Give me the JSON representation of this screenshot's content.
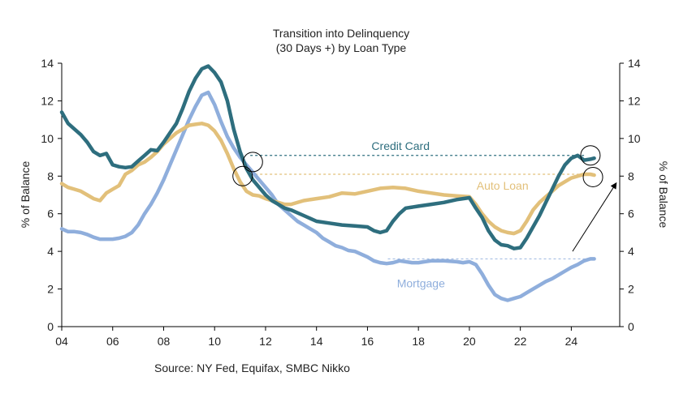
{
  "chart_data": {
    "type": "line",
    "title": "Transition into Delinquency",
    "subtitle": "(30 Days +) by Loan Type",
    "ylabel_left": "% of Balance",
    "ylabel_right": "% of Balance",
    "xlabel": "",
    "xlim": [
      2004,
      2025.9
    ],
    "ylim": [
      0,
      14
    ],
    "x_ticks": [
      2004,
      2006,
      2008,
      2010,
      2012,
      2014,
      2016,
      2018,
      2020,
      2022,
      2024
    ],
    "x_tick_labels": [
      "04",
      "06",
      "08",
      "10",
      "12",
      "14",
      "16",
      "18",
      "20",
      "22",
      "24"
    ],
    "y_ticks": [
      0,
      2,
      4,
      6,
      8,
      10,
      12,
      14
    ],
    "y_tick_labels": [
      "0",
      "2",
      "4",
      "6",
      "8",
      "10",
      "12",
      "14"
    ],
    "source": "Source: NY Fed, Equifax, SMBC Nikko",
    "colors": {
      "credit_card": "#2E6E7E",
      "auto_loan": "#E2C07A",
      "mortgage": "#8FAEDC",
      "text": "#222222",
      "axis": "#000000"
    },
    "series": [
      {
        "name": "Credit Card",
        "key": "credit_card",
        "points": [
          [
            2004.0,
            11.4
          ],
          [
            2004.25,
            10.8
          ],
          [
            2004.5,
            10.5
          ],
          [
            2004.75,
            10.2
          ],
          [
            2005.0,
            9.8
          ],
          [
            2005.25,
            9.3
          ],
          [
            2005.5,
            9.1
          ],
          [
            2005.75,
            9.2
          ],
          [
            2006.0,
            8.6
          ],
          [
            2006.25,
            8.5
          ],
          [
            2006.5,
            8.45
          ],
          [
            2006.75,
            8.5
          ],
          [
            2007.0,
            8.8
          ],
          [
            2007.25,
            9.1
          ],
          [
            2007.5,
            9.4
          ],
          [
            2007.75,
            9.35
          ],
          [
            2008.0,
            9.8
          ],
          [
            2008.25,
            10.3
          ],
          [
            2008.5,
            10.8
          ],
          [
            2008.75,
            11.6
          ],
          [
            2009.0,
            12.5
          ],
          [
            2009.25,
            13.2
          ],
          [
            2009.5,
            13.7
          ],
          [
            2009.75,
            13.85
          ],
          [
            2010.0,
            13.5
          ],
          [
            2010.25,
            13.0
          ],
          [
            2010.5,
            12.0
          ],
          [
            2010.75,
            10.5
          ],
          [
            2011.0,
            9.3
          ],
          [
            2011.25,
            8.4
          ],
          [
            2011.5,
            7.8
          ],
          [
            2011.75,
            7.4
          ],
          [
            2012.0,
            7.0
          ],
          [
            2012.25,
            6.7
          ],
          [
            2012.5,
            6.5
          ],
          [
            2012.75,
            6.3
          ],
          [
            2013.0,
            6.2
          ],
          [
            2013.5,
            5.9
          ],
          [
            2014.0,
            5.6
          ],
          [
            2014.5,
            5.5
          ],
          [
            2015.0,
            5.4
          ],
          [
            2015.5,
            5.35
          ],
          [
            2016.0,
            5.3
          ],
          [
            2016.25,
            5.1
          ],
          [
            2016.5,
            5.0
          ],
          [
            2016.75,
            5.1
          ],
          [
            2017.0,
            5.6
          ],
          [
            2017.25,
            6.0
          ],
          [
            2017.5,
            6.3
          ],
          [
            2017.75,
            6.35
          ],
          [
            2018.0,
            6.4
          ],
          [
            2018.5,
            6.5
          ],
          [
            2019.0,
            6.6
          ],
          [
            2019.5,
            6.75
          ],
          [
            2019.75,
            6.8
          ],
          [
            2020.0,
            6.85
          ],
          [
            2020.25,
            6.3
          ],
          [
            2020.5,
            5.8
          ],
          [
            2020.75,
            5.1
          ],
          [
            2021.0,
            4.6
          ],
          [
            2021.25,
            4.35
          ],
          [
            2021.5,
            4.3
          ],
          [
            2021.75,
            4.15
          ],
          [
            2022.0,
            4.2
          ],
          [
            2022.25,
            4.7
          ],
          [
            2022.5,
            5.3
          ],
          [
            2022.75,
            5.9
          ],
          [
            2023.0,
            6.6
          ],
          [
            2023.25,
            7.3
          ],
          [
            2023.5,
            8.0
          ],
          [
            2023.75,
            8.6
          ],
          [
            2024.0,
            8.95
          ],
          [
            2024.25,
            9.1
          ],
          [
            2024.5,
            8.85
          ],
          [
            2024.75,
            8.9
          ],
          [
            2024.9,
            8.95
          ]
        ]
      },
      {
        "name": "Auto Loan",
        "key": "auto_loan",
        "points": [
          [
            2004.0,
            7.6
          ],
          [
            2004.25,
            7.4
          ],
          [
            2004.5,
            7.3
          ],
          [
            2004.75,
            7.2
          ],
          [
            2005.0,
            7.0
          ],
          [
            2005.25,
            6.8
          ],
          [
            2005.5,
            6.7
          ],
          [
            2005.75,
            7.1
          ],
          [
            2006.0,
            7.3
          ],
          [
            2006.25,
            7.5
          ],
          [
            2006.5,
            8.1
          ],
          [
            2006.75,
            8.3
          ],
          [
            2007.0,
            8.6
          ],
          [
            2007.25,
            8.75
          ],
          [
            2007.5,
            9.0
          ],
          [
            2007.75,
            9.3
          ],
          [
            2008.0,
            9.7
          ],
          [
            2008.25,
            10.0
          ],
          [
            2008.5,
            10.3
          ],
          [
            2008.75,
            10.5
          ],
          [
            2009.0,
            10.7
          ],
          [
            2009.25,
            10.75
          ],
          [
            2009.5,
            10.8
          ],
          [
            2009.75,
            10.7
          ],
          [
            2010.0,
            10.4
          ],
          [
            2010.25,
            9.9
          ],
          [
            2010.5,
            9.2
          ],
          [
            2010.75,
            8.4
          ],
          [
            2011.0,
            7.7
          ],
          [
            2011.25,
            7.2
          ],
          [
            2011.5,
            7.0
          ],
          [
            2011.75,
            6.95
          ],
          [
            2012.0,
            6.8
          ],
          [
            2012.25,
            6.7
          ],
          [
            2012.5,
            6.6
          ],
          [
            2012.75,
            6.5
          ],
          [
            2013.0,
            6.5
          ],
          [
            2013.5,
            6.7
          ],
          [
            2014.0,
            6.8
          ],
          [
            2014.5,
            6.9
          ],
          [
            2015.0,
            7.1
          ],
          [
            2015.5,
            7.05
          ],
          [
            2016.0,
            7.2
          ],
          [
            2016.5,
            7.35
          ],
          [
            2017.0,
            7.4
          ],
          [
            2017.5,
            7.35
          ],
          [
            2018.0,
            7.2
          ],
          [
            2018.5,
            7.1
          ],
          [
            2019.0,
            7.0
          ],
          [
            2019.5,
            6.95
          ],
          [
            2020.0,
            6.9
          ],
          [
            2020.25,
            6.5
          ],
          [
            2020.5,
            6.0
          ],
          [
            2020.75,
            5.6
          ],
          [
            2021.0,
            5.3
          ],
          [
            2021.25,
            5.1
          ],
          [
            2021.5,
            5.0
          ],
          [
            2021.75,
            4.95
          ],
          [
            2022.0,
            5.1
          ],
          [
            2022.25,
            5.6
          ],
          [
            2022.5,
            6.2
          ],
          [
            2022.75,
            6.6
          ],
          [
            2023.0,
            6.9
          ],
          [
            2023.25,
            7.2
          ],
          [
            2023.5,
            7.5
          ],
          [
            2023.75,
            7.7
          ],
          [
            2024.0,
            7.9
          ],
          [
            2024.25,
            8.0
          ],
          [
            2024.5,
            8.1
          ],
          [
            2024.75,
            8.1
          ],
          [
            2024.9,
            8.05
          ]
        ]
      },
      {
        "name": "Mortgage",
        "key": "mortgage",
        "points": [
          [
            2004.0,
            5.2
          ],
          [
            2004.25,
            5.05
          ],
          [
            2004.5,
            5.05
          ],
          [
            2004.75,
            5.0
          ],
          [
            2005.0,
            4.9
          ],
          [
            2005.25,
            4.75
          ],
          [
            2005.5,
            4.65
          ],
          [
            2005.75,
            4.65
          ],
          [
            2006.0,
            4.65
          ],
          [
            2006.25,
            4.7
          ],
          [
            2006.5,
            4.8
          ],
          [
            2006.75,
            5.0
          ],
          [
            2007.0,
            5.4
          ],
          [
            2007.25,
            6.0
          ],
          [
            2007.5,
            6.5
          ],
          [
            2007.75,
            7.1
          ],
          [
            2008.0,
            7.8
          ],
          [
            2008.25,
            8.6
          ],
          [
            2008.5,
            9.4
          ],
          [
            2008.75,
            10.2
          ],
          [
            2009.0,
            11.0
          ],
          [
            2009.25,
            11.7
          ],
          [
            2009.5,
            12.3
          ],
          [
            2009.75,
            12.45
          ],
          [
            2010.0,
            11.8
          ],
          [
            2010.25,
            10.9
          ],
          [
            2010.5,
            10.1
          ],
          [
            2010.75,
            9.5
          ],
          [
            2011.0,
            9.0
          ],
          [
            2011.25,
            8.6
          ],
          [
            2011.5,
            8.2
          ],
          [
            2011.75,
            7.8
          ],
          [
            2012.0,
            7.4
          ],
          [
            2012.25,
            7.0
          ],
          [
            2012.5,
            6.5
          ],
          [
            2012.75,
            6.2
          ],
          [
            2013.0,
            5.9
          ],
          [
            2013.25,
            5.6
          ],
          [
            2013.5,
            5.4
          ],
          [
            2013.75,
            5.2
          ],
          [
            2014.0,
            5.0
          ],
          [
            2014.25,
            4.7
          ],
          [
            2014.5,
            4.5
          ],
          [
            2014.75,
            4.3
          ],
          [
            2015.0,
            4.2
          ],
          [
            2015.25,
            4.05
          ],
          [
            2015.5,
            4.0
          ],
          [
            2015.75,
            3.85
          ],
          [
            2016.0,
            3.7
          ],
          [
            2016.25,
            3.5
          ],
          [
            2016.5,
            3.4
          ],
          [
            2016.75,
            3.35
          ],
          [
            2017.0,
            3.4
          ],
          [
            2017.25,
            3.5
          ],
          [
            2017.5,
            3.45
          ],
          [
            2017.75,
            3.4
          ],
          [
            2018.0,
            3.4
          ],
          [
            2018.25,
            3.45
          ],
          [
            2018.5,
            3.5
          ],
          [
            2018.75,
            3.5
          ],
          [
            2019.0,
            3.5
          ],
          [
            2019.5,
            3.45
          ],
          [
            2019.75,
            3.4
          ],
          [
            2020.0,
            3.45
          ],
          [
            2020.25,
            3.3
          ],
          [
            2020.5,
            2.8
          ],
          [
            2020.75,
            2.2
          ],
          [
            2021.0,
            1.7
          ],
          [
            2021.25,
            1.5
          ],
          [
            2021.5,
            1.4
          ],
          [
            2021.75,
            1.5
          ],
          [
            2022.0,
            1.6
          ],
          [
            2022.25,
            1.8
          ],
          [
            2022.5,
            2.0
          ],
          [
            2022.75,
            2.2
          ],
          [
            2023.0,
            2.4
          ],
          [
            2023.25,
            2.55
          ],
          [
            2023.5,
            2.75
          ],
          [
            2023.75,
            2.95
          ],
          [
            2024.0,
            3.15
          ],
          [
            2024.25,
            3.3
          ],
          [
            2024.5,
            3.5
          ],
          [
            2024.75,
            3.6
          ],
          [
            2024.9,
            3.6
          ]
        ]
      }
    ],
    "reference_lines": [
      {
        "series": "credit_card",
        "value": 9.1,
        "from": 2011.4,
        "to": 2024.5
      },
      {
        "series": "auto_loan",
        "value": 8.1,
        "from": 2011.4,
        "to": 2024.5
      },
      {
        "series": "mortgage",
        "value": 3.6,
        "from": 2016.8,
        "to": 2024.9
      }
    ],
    "annotations": [
      {
        "text": "Credit Card",
        "series": "credit_card",
        "x": 2017.3,
        "y": 9.6
      },
      {
        "text": "Auto Loan",
        "series": "auto_loan",
        "x": 2021.3,
        "y": 7.5
      },
      {
        "text": "Mortgage",
        "series": "mortgage",
        "x": 2018.1,
        "y": 2.3
      }
    ],
    "highlight_circles": [
      {
        "x": 2011.5,
        "y": 8.75
      },
      {
        "x": 2011.1,
        "y": 8.0
      },
      {
        "x": 2024.75,
        "y": 9.1
      },
      {
        "x": 2024.85,
        "y": 7.95
      }
    ],
    "arrow": {
      "from": [
        2024.05,
        4.0
      ],
      "to": [
        2025.75,
        7.6
      ]
    }
  }
}
